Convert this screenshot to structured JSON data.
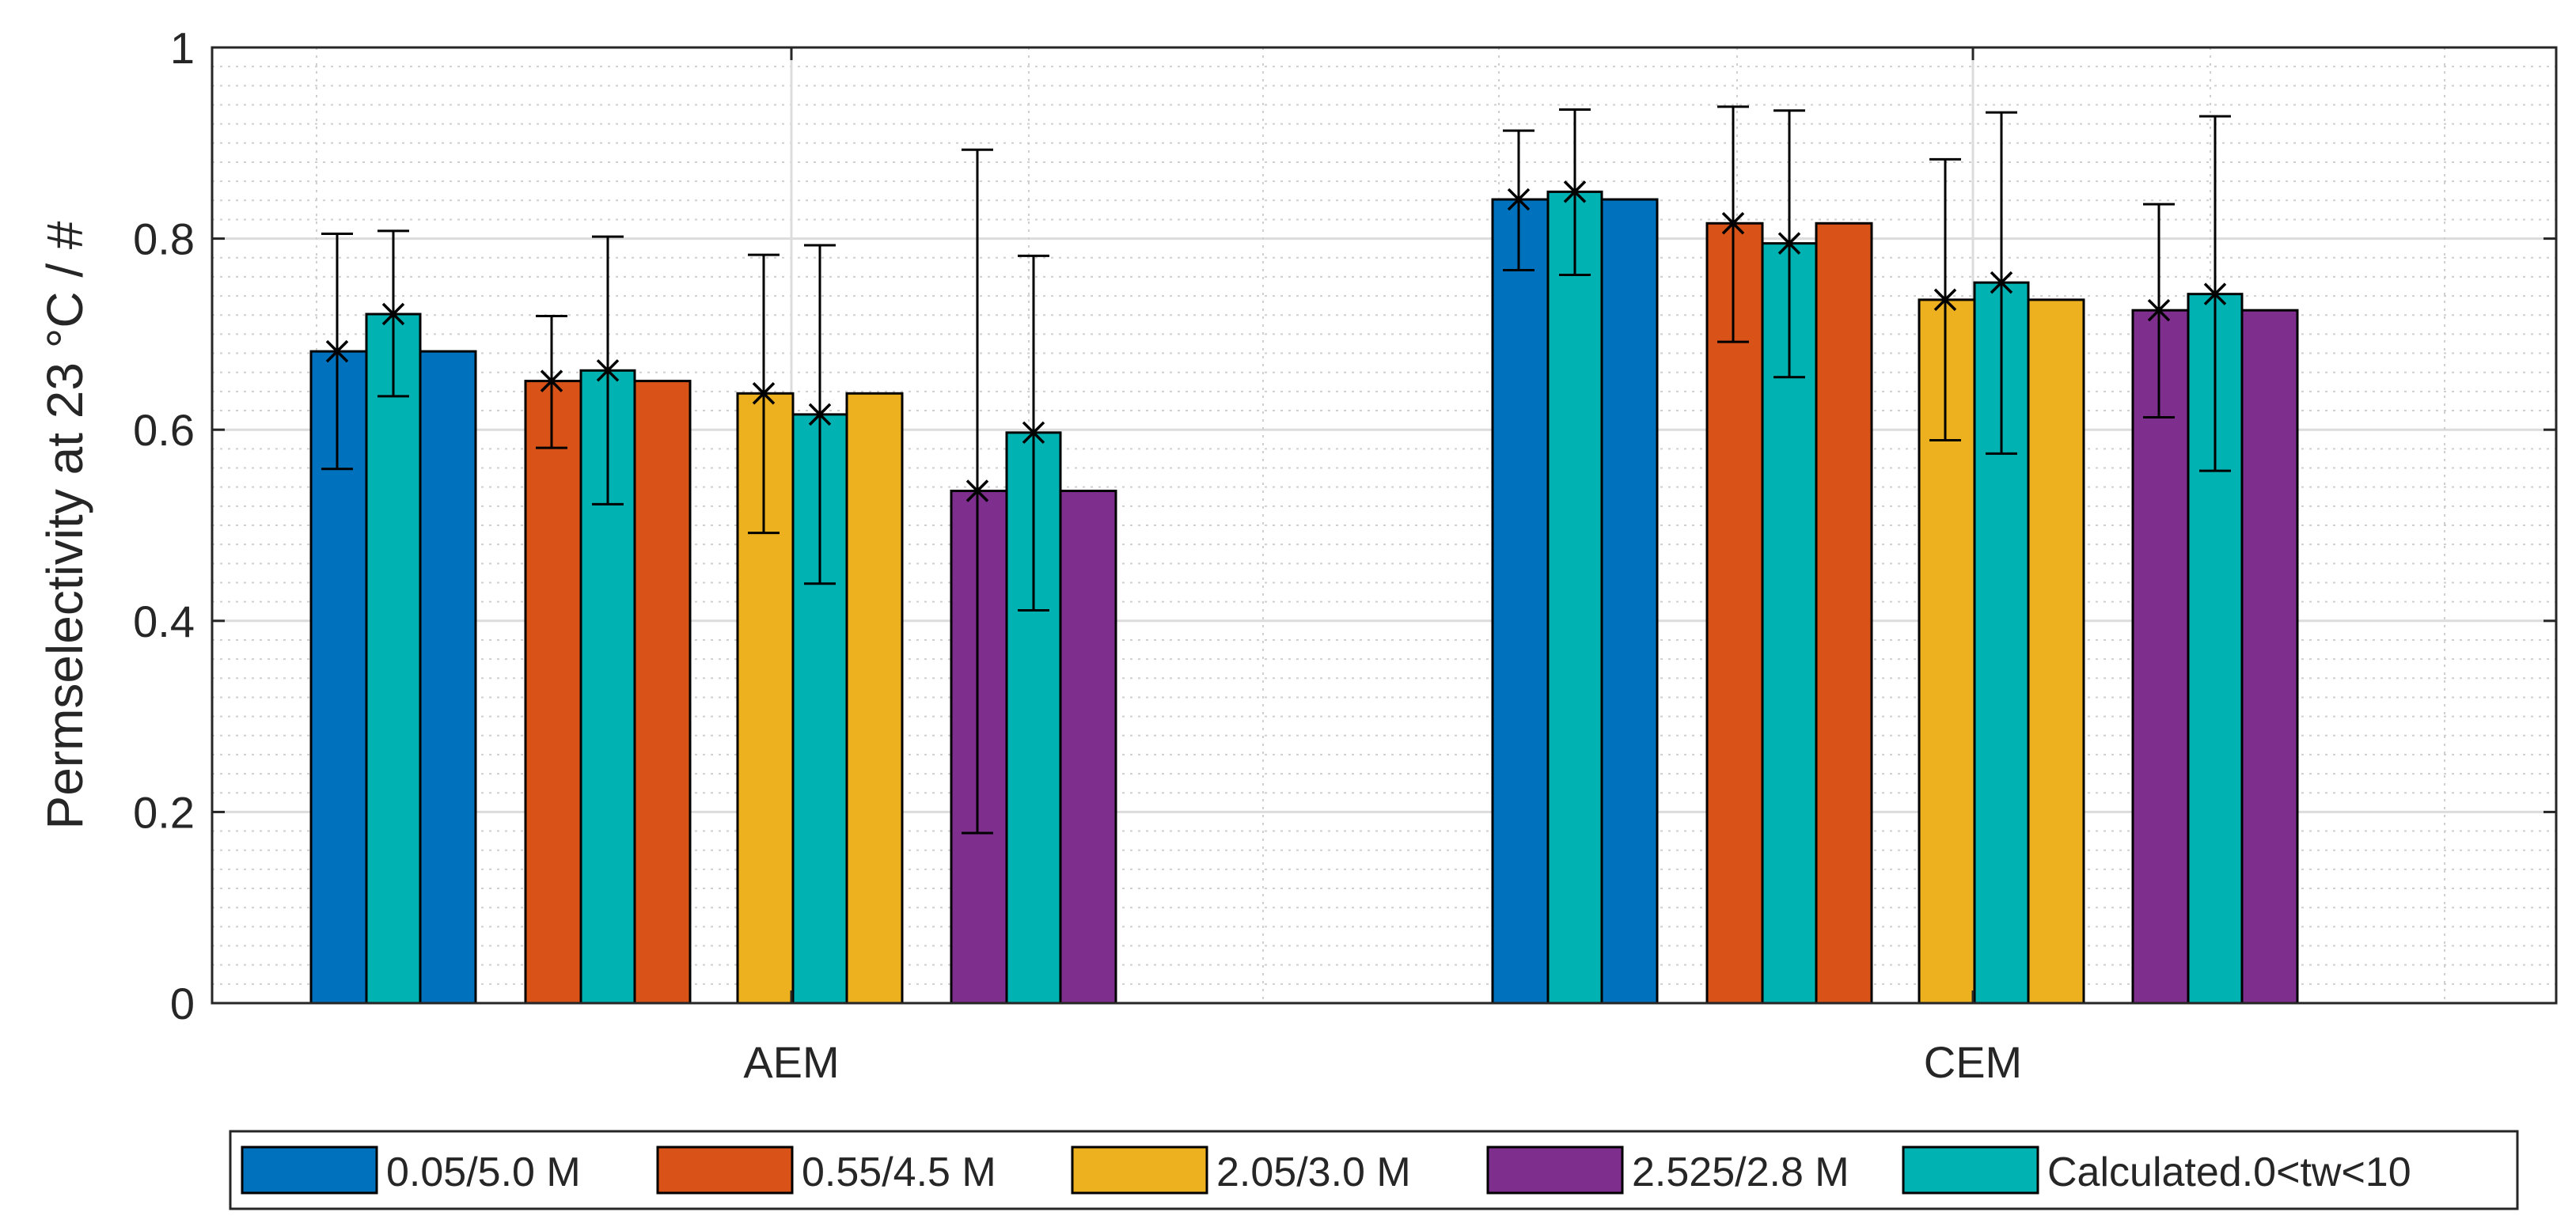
{
  "chart_data": {
    "type": "bar",
    "title": "",
    "xlabel": "",
    "ylabel": "Permselectivity at 23 °C / #",
    "ylim": [
      0,
      1
    ],
    "yticks": [
      "0",
      "0.2",
      "0.4",
      "0.6",
      "0.8",
      "1"
    ],
    "grid": true,
    "legend_position": "bottom",
    "categories": [
      "AEM",
      "CEM"
    ],
    "series": [
      {
        "name": "0.05/5.0 M",
        "color": "#0072BD",
        "values": [
          0.682,
          0.841
        ]
      },
      {
        "name": "0.55/4.5 M",
        "color": "#D95319",
        "values": [
          0.651,
          0.816
        ]
      },
      {
        "name": "2.05/3.0 M",
        "color": "#EDB120",
        "values": [
          0.638,
          0.736
        ]
      },
      {
        "name": "2.525/2.8 M",
        "color": "#7E2F8E",
        "values": [
          0.536,
          0.725
        ]
      }
    ],
    "calculated": {
      "name": "Calculated.0<tw<10",
      "color": "#00B2B2",
      "values": [
        [
          0.721,
          0.849
        ],
        [
          0.662,
          0.795
        ],
        [
          0.616,
          0.754
        ],
        [
          0.597,
          0.742
        ]
      ],
      "error_low": [
        [
          0.635,
          0.762
        ],
        [
          0.522,
          0.655
        ],
        [
          0.439,
          0.575
        ],
        [
          0.411,
          0.557
        ]
      ],
      "error_high": [
        [
          0.808,
          0.935
        ],
        [
          0.802,
          0.934
        ],
        [
          0.793,
          0.932
        ],
        [
          0.782,
          0.928
        ]
      ]
    },
    "measured_markers": {
      "values": [
        [
          0.682,
          0.841
        ],
        [
          0.651,
          0.816
        ],
        [
          0.638,
          0.736
        ],
        [
          0.536,
          0.725
        ]
      ],
      "error_low": [
        [
          0.559,
          0.767
        ],
        [
          0.581,
          0.692
        ],
        [
          0.492,
          0.589
        ],
        [
          0.178,
          0.613
        ]
      ],
      "error_high": [
        [
          0.805,
          0.913
        ],
        [
          0.719,
          0.938
        ],
        [
          0.783,
          0.883
        ],
        [
          0.893,
          0.836
        ]
      ]
    }
  }
}
